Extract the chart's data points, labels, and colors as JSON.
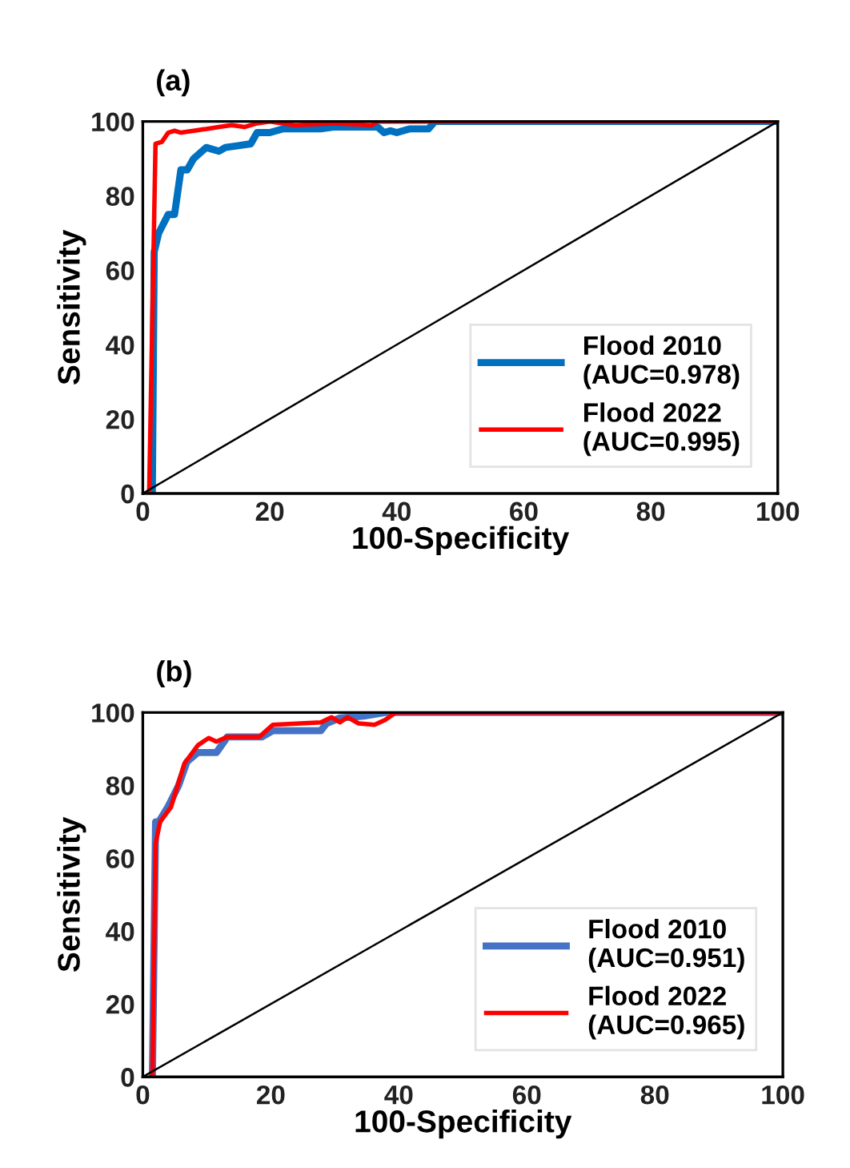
{
  "chart_data": [
    {
      "type": "line",
      "title": "(a)",
      "xlabel": "100-Specificity",
      "ylabel": "Sensitivity",
      "xlim": [
        0,
        100
      ],
      "ylim": [
        0,
        100
      ],
      "xticks": [
        0,
        20,
        40,
        60,
        80,
        100
      ],
      "yticks": [
        0,
        20,
        40,
        60,
        80,
        100
      ],
      "grid": false,
      "legend": "bottom right",
      "marker": "none",
      "line_style": "solid",
      "series": [
        {
          "name": "Flood 2010\n(AUC=0.978)",
          "color": "#0070c0",
          "x": [
            1.5,
            1.8,
            2.5,
            4,
            5,
            6,
            7,
            8,
            10,
            12,
            13,
            15,
            17,
            18,
            20,
            22,
            28,
            30,
            36,
            37,
            38,
            39,
            40,
            42,
            44,
            45,
            46,
            100
          ],
          "values": [
            0,
            65,
            70,
            75,
            75,
            87,
            87,
            90,
            93,
            92,
            93,
            93.5,
            94,
            97,
            97,
            98,
            98,
            98.5,
            98.5,
            98.5,
            97,
            97.5,
            97,
            98,
            98,
            98,
            100,
            100
          ]
        },
        {
          "name": "Flood 2022\n(AUC=0.995)",
          "color": "#ff0000",
          "x": [
            1,
            2,
            3,
            4,
            5,
            6,
            8,
            10,
            12,
            14,
            16,
            18,
            20,
            24,
            30,
            36,
            37,
            100
          ],
          "values": [
            0,
            94,
            94.5,
            97,
            97.5,
            97,
            97.5,
            98,
            98.5,
            99,
            98.5,
            99.5,
            100,
            99,
            99.5,
            99,
            100,
            100
          ]
        },
        {
          "color": "#000000",
          "x": [
            0,
            100
          ],
          "values": [
            0,
            100
          ]
        }
      ]
    },
    {
      "type": "line",
      "title": "(b)",
      "xlabel": "100-Specificity",
      "ylabel": "Sensitivity",
      "xlim": [
        0,
        100
      ],
      "ylim": [
        0,
        100
      ],
      "xticks": [
        0,
        20,
        40,
        60,
        80,
        100
      ],
      "yticks": [
        0,
        20,
        40,
        60,
        80,
        100
      ],
      "grid": false,
      "legend": "bottom right",
      "marker": "none",
      "line_style": "solid",
      "series": [
        {
          "name": "Flood 2010\n(AUC=0.951)",
          "color": "#4472c4",
          "x": [
            1.5,
            2,
            2.5,
            3.9,
            5.6,
            6.9,
            8.6,
            11.5,
            12.3,
            13.2,
            18.6,
            20.3,
            27.8,
            28.7,
            30.8,
            34.5,
            37.9,
            100
          ],
          "values": [
            0,
            70,
            70,
            74,
            80,
            86.5,
            89,
            89,
            91,
            93.3,
            93.3,
            95,
            95,
            97,
            98.5,
            99,
            100,
            100
          ]
        },
        {
          "name": "Flood 2022\n(AUC=0.965)",
          "color": "#ff0000",
          "x": [
            1.5,
            2,
            2.7,
            4.4,
            6.5,
            8.6,
            10.3,
            11.5,
            13.2,
            18.2,
            20.3,
            27.8,
            29.5,
            30.8,
            32,
            33.7,
            36.2,
            37.9,
            39.5,
            100
          ],
          "values": [
            0,
            64,
            70,
            74,
            86,
            91,
            93,
            92,
            93.3,
            93.3,
            96.6,
            97.3,
            98.7,
            97.3,
            98.7,
            97,
            96.6,
            98,
            100,
            100
          ]
        },
        {
          "color": "#000000",
          "x": [
            0,
            100
          ],
          "values": [
            0,
            100
          ]
        }
      ]
    }
  ]
}
